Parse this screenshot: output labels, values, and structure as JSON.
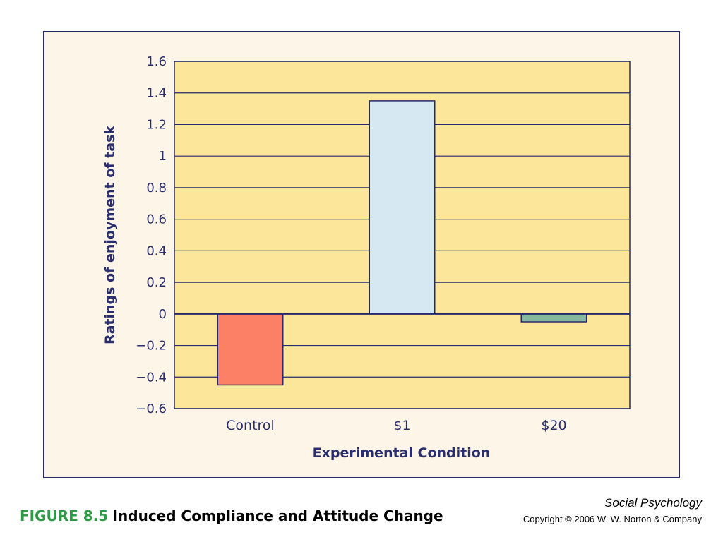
{
  "chart_data": {
    "type": "bar",
    "categories": [
      "Control",
      "$1",
      "$20"
    ],
    "values": [
      -0.45,
      1.35,
      -0.05
    ],
    "ylabel": "Ratings of enjoyment of task",
    "xlabel": "Experimental Condition",
    "ylim": [
      -0.6,
      1.6
    ],
    "yticks": [
      1.6,
      1.4,
      1.2,
      1,
      0.8,
      0.6,
      0.4,
      0.2,
      0,
      -0.2,
      -0.4,
      -0.6
    ],
    "ytick_labels": [
      "1.6",
      "1.4",
      "1.2",
      "1",
      "0.8",
      "0.6",
      "0.4",
      "0.2",
      "0",
      "−0.2",
      "−0.4",
      "−0.6"
    ],
    "grid": true,
    "bar_colors": [
      "#fb8066",
      "#d6e8f2",
      "#86b89c"
    ],
    "plot_background": "#fce69a",
    "frame_color": "#262a6b"
  },
  "caption": {
    "number": "FIGURE 8.5",
    "title": "Induced Compliance and Attitude Change"
  },
  "credit": {
    "book": "Social Psychology",
    "copyright": "Copyright © 2006 W. W. Norton & Company"
  }
}
